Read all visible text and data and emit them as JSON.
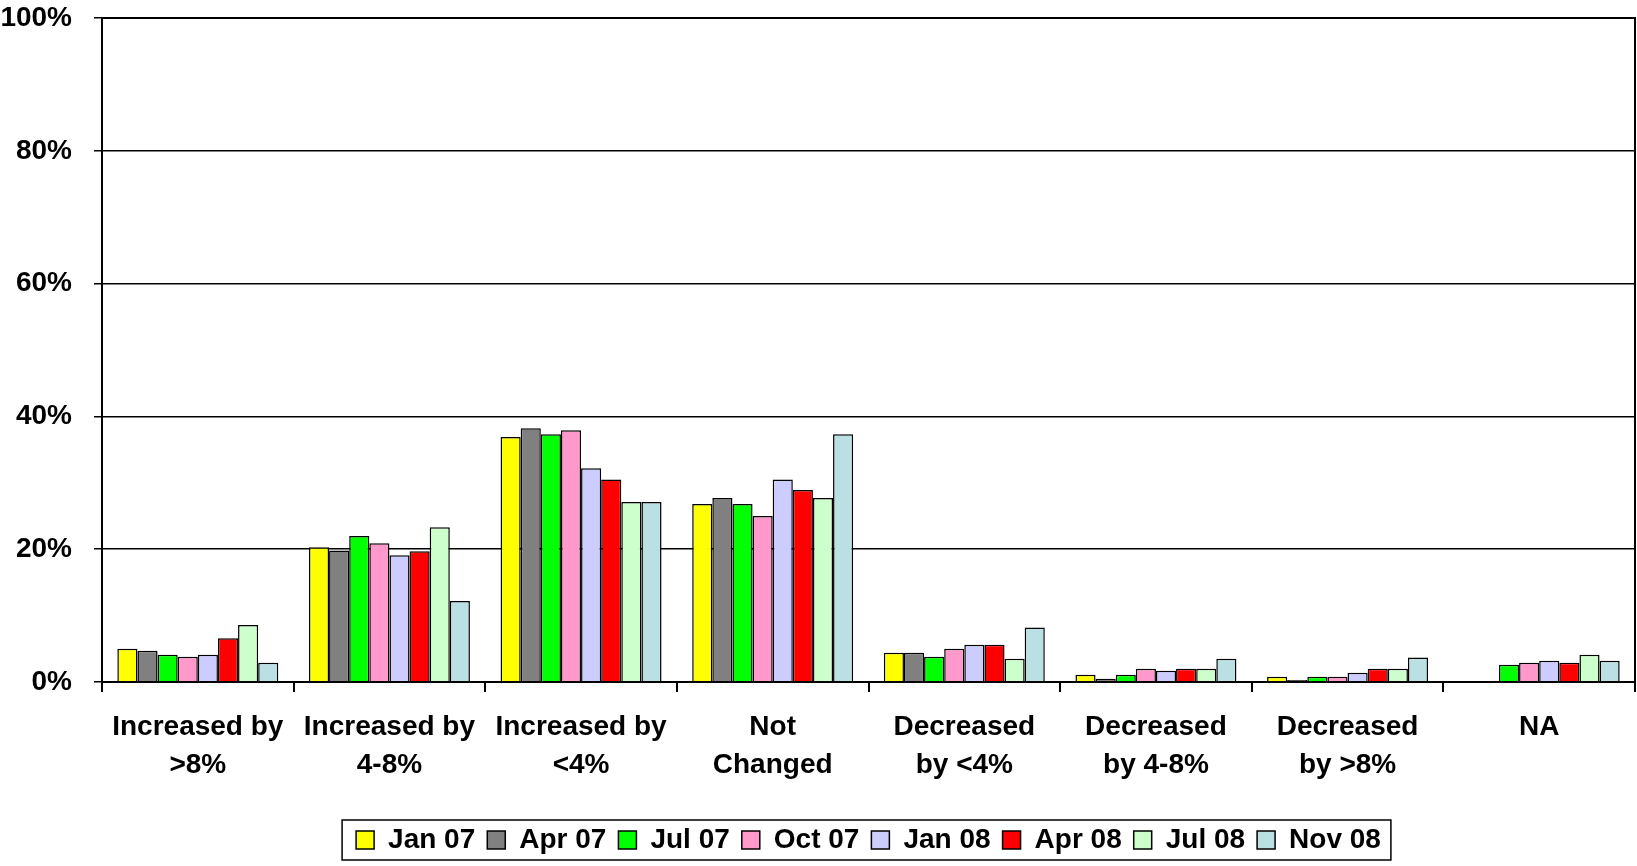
{
  "chart_data": {
    "type": "bar",
    "categories": [
      "Increased by\n>8%",
      "Increased by\n4-8%",
      "Increased by\n<4%",
      "Not\nChanged",
      "Decreased\nby <4%",
      "Decreased\nby 4-8%",
      "Decreased\nby >8%",
      "NA"
    ],
    "series": [
      {
        "name": "Jan 07",
        "color": "#ffff00",
        "values": [
          5.0,
          20.3,
          36.9,
          26.8,
          4.4,
          1.1,
          0.8,
          null
        ]
      },
      {
        "name": "Apr 07",
        "color": "#808080",
        "values": [
          4.7,
          19.8,
          38.2,
          27.7,
          4.4,
          0.5,
          0.3,
          null
        ]
      },
      {
        "name": "Jul 07",
        "color": "#00ff00",
        "values": [
          4.1,
          22.0,
          37.3,
          26.8,
          3.8,
          1.1,
          0.8,
          2.6
        ]
      },
      {
        "name": "Oct 07",
        "color": "#ff99cc",
        "values": [
          3.8,
          20.9,
          37.9,
          25.0,
          5.0,
          2.0,
          0.8,
          2.9
        ]
      },
      {
        "name": "Jan 08",
        "color": "#ccccff",
        "values": [
          4.1,
          19.1,
          32.2,
          30.5,
          5.6,
          1.7,
          1.4,
          3.2
        ]
      },
      {
        "name": "Apr 08",
        "color": "#ff0000",
        "values": [
          6.6,
          19.7,
          30.5,
          28.9,
          5.6,
          2.0,
          2.0,
          2.9
        ]
      },
      {
        "name": "Jul 08",
        "color": "#ccffcc",
        "values": [
          8.6,
          23.3,
          27.1,
          27.7,
          3.5,
          2.0,
          2.0,
          4.1
        ]
      },
      {
        "name": "Nov 08",
        "color": "#bbe0e3",
        "values": [
          2.9,
          12.2,
          27.1,
          37.3,
          8.2,
          3.5,
          3.7,
          3.2
        ]
      }
    ],
    "ylim": [
      0,
      100
    ],
    "yticks": [
      {
        "value": 0,
        "label": "0%"
      },
      {
        "value": 20,
        "label": "20%"
      },
      {
        "value": 40,
        "label": "40%"
      },
      {
        "value": 60,
        "label": "60%"
      },
      {
        "value": 80,
        "label": "80%"
      },
      {
        "value": 100,
        "label": "100%"
      }
    ],
    "grid": "y",
    "legend": "bottom"
  }
}
